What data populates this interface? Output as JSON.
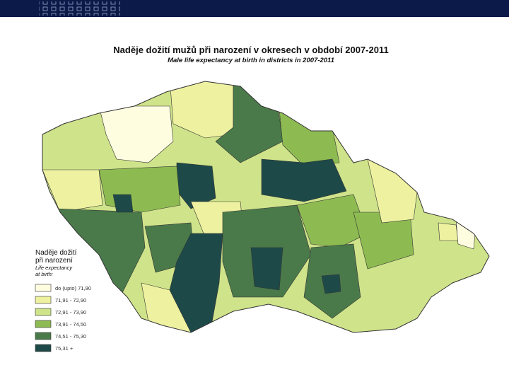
{
  "title": "Naděje dožití mužů při narození v okresech v období 2007-2011",
  "subtitle": "Male life expectancy at birth in districts in 2007-2011",
  "legend": {
    "title": [
      "Naděje dožití",
      "při narození"
    ],
    "subtitle": [
      "Life expectancy",
      "at birth:"
    ],
    "items": [
      {
        "label": "do (upto) 71,90",
        "color": "#fffde0"
      },
      {
        "label": "71,91 - 72,90",
        "color": "#eef2a0"
      },
      {
        "label": "72,91 - 73,90",
        "color": "#cfe38a"
      },
      {
        "label": "73,91 - 74,50",
        "color": "#8dbb52"
      },
      {
        "label": "74,51 - 75,30",
        "color": "#4a7a4a"
      },
      {
        "label": "75,31 +",
        "color": "#1d4a48"
      }
    ]
  }
}
